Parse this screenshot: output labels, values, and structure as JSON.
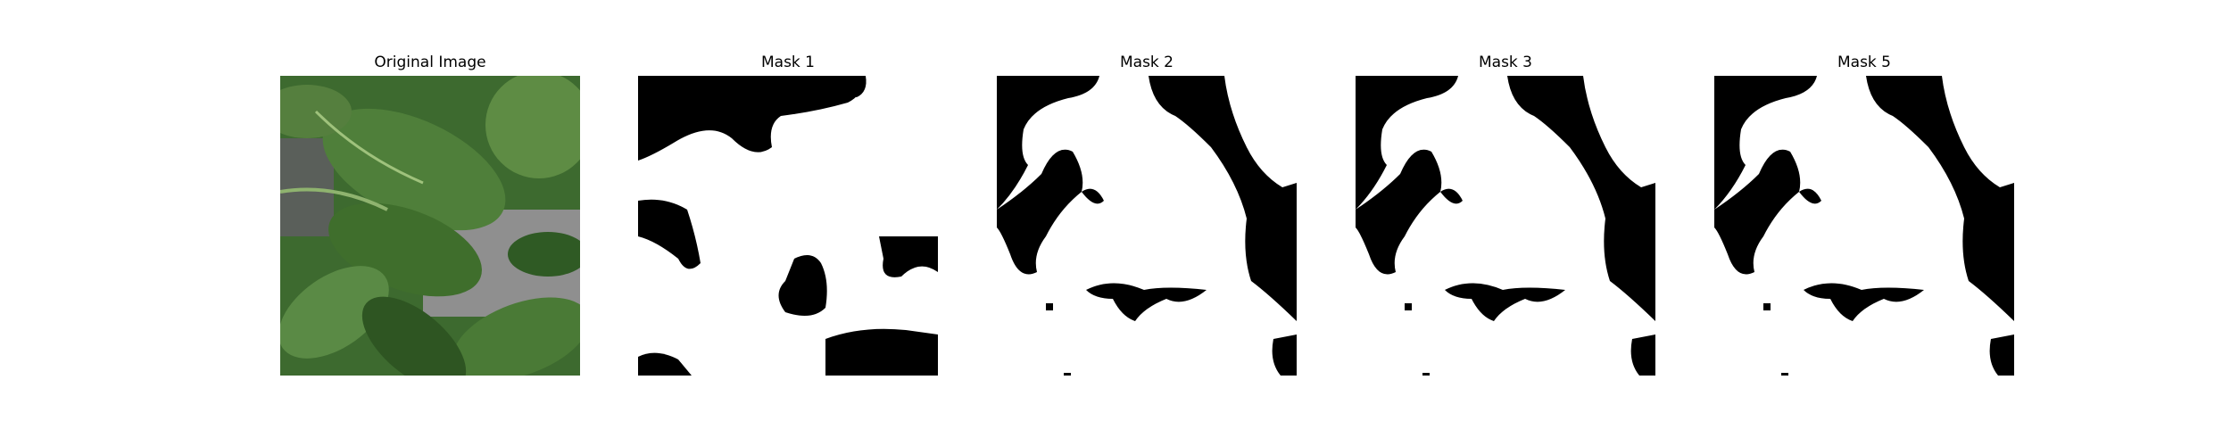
{
  "figure": {
    "panels": [
      {
        "title": "Original Image",
        "kind": "photo"
      },
      {
        "title": "Mask 1",
        "kind": "mask"
      },
      {
        "title": "Mask 2",
        "kind": "mask"
      },
      {
        "title": "Mask 3",
        "kind": "mask"
      },
      {
        "title": "Mask 5",
        "kind": "mask"
      }
    ]
  },
  "colors": {
    "mask_foreground": "#ffffff",
    "mask_background": "#000000",
    "leaf_dark": "#2f5a24",
    "leaf_mid": "#4d7d38",
    "leaf_light": "#7fa86a",
    "backdrop_gray": "#8a8a8a"
  }
}
